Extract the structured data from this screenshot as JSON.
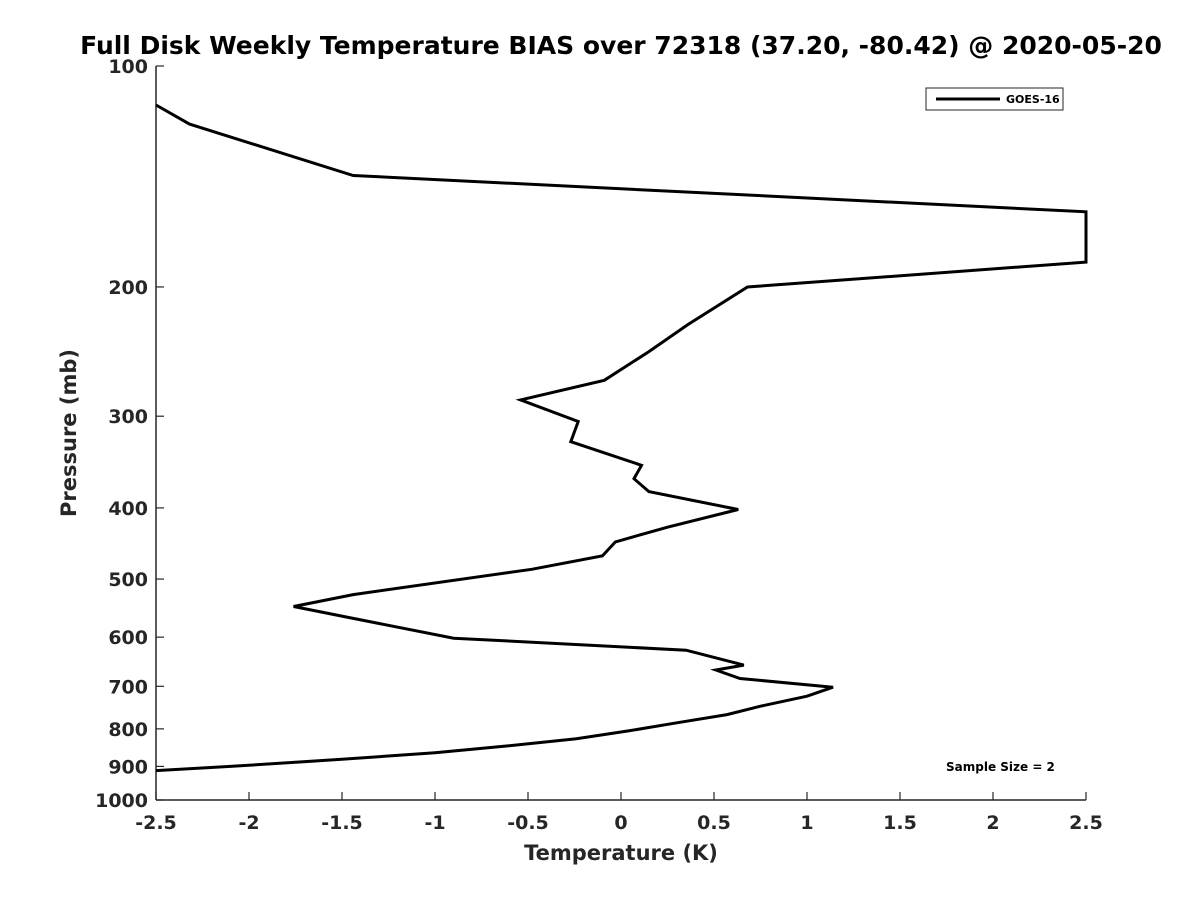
{
  "chart_data": {
    "type": "line",
    "title": "Full Disk Weekly Temperature BIAS over 72318 (37.20, -80.42) @ 2020-05-20",
    "xlabel": "Temperature (K)",
    "ylabel": "Pressure (mb)",
    "xlim": [
      -2.5,
      2.5
    ],
    "ylim": [
      1000,
      100
    ],
    "y_scale": "log",
    "y_reversed": true,
    "grid": false,
    "x_ticks": [
      -2.5,
      -2,
      -1.5,
      -1,
      -0.5,
      0,
      0.5,
      1,
      1.5,
      2,
      2.5
    ],
    "x_tick_labels": [
      "-2.5",
      "-2",
      "-1.5",
      "-1",
      "-0.5",
      "0",
      "0.5",
      "1",
      "1.5",
      "2",
      "2.5"
    ],
    "y_ticks": [
      100,
      200,
      300,
      400,
      500,
      600,
      700,
      800,
      900,
      1000
    ],
    "y_tick_labels": [
      "100",
      "200",
      "300",
      "400",
      "500",
      "600",
      "700",
      "800",
      "900",
      "1000"
    ],
    "legend": {
      "placement": "top-right",
      "entries": [
        "GOES-16"
      ]
    },
    "annotation": "Sample Size = 2",
    "series": [
      {
        "name": "GOES-16",
        "color": "#000000",
        "points": [
          {
            "t": -2.5,
            "p": 113
          },
          {
            "t": -2.32,
            "p": 120
          },
          {
            "t": -1.44,
            "p": 141
          },
          {
            "t": 2.5,
            "p": 158
          },
          {
            "t": 2.5,
            "p": 185
          },
          {
            "t": 0.68,
            "p": 200
          },
          {
            "t": 0.36,
            "p": 225
          },
          {
            "t": 0.15,
            "p": 245
          },
          {
            "t": -0.09,
            "p": 268
          },
          {
            "t": -0.54,
            "p": 285
          },
          {
            "t": -0.23,
            "p": 305
          },
          {
            "t": -0.27,
            "p": 325
          },
          {
            "t": 0.11,
            "p": 350
          },
          {
            "t": 0.07,
            "p": 365
          },
          {
            "t": 0.15,
            "p": 380
          },
          {
            "t": 0.63,
            "p": 402
          },
          {
            "t": 0.25,
            "p": 425
          },
          {
            "t": -0.03,
            "p": 445
          },
          {
            "t": -0.1,
            "p": 465
          },
          {
            "t": -0.48,
            "p": 485
          },
          {
            "t": -1.44,
            "p": 525
          },
          {
            "t": -1.76,
            "p": 545
          },
          {
            "t": -1.45,
            "p": 565
          },
          {
            "t": -0.9,
            "p": 602
          },
          {
            "t": 0.35,
            "p": 625
          },
          {
            "t": 0.66,
            "p": 655
          },
          {
            "t": 0.51,
            "p": 665
          },
          {
            "t": 0.64,
            "p": 683
          },
          {
            "t": 1.14,
            "p": 702
          },
          {
            "t": 1.0,
            "p": 722
          },
          {
            "t": 0.75,
            "p": 745
          },
          {
            "t": 0.57,
            "p": 765
          },
          {
            "t": 0.3,
            "p": 785
          },
          {
            "t": 0.04,
            "p": 805
          },
          {
            "t": -0.24,
            "p": 825
          },
          {
            "t": -0.63,
            "p": 845
          },
          {
            "t": -1.0,
            "p": 862
          },
          {
            "t": -1.5,
            "p": 880
          },
          {
            "t": -2.1,
            "p": 900
          },
          {
            "t": -2.5,
            "p": 912
          }
        ]
      }
    ]
  }
}
